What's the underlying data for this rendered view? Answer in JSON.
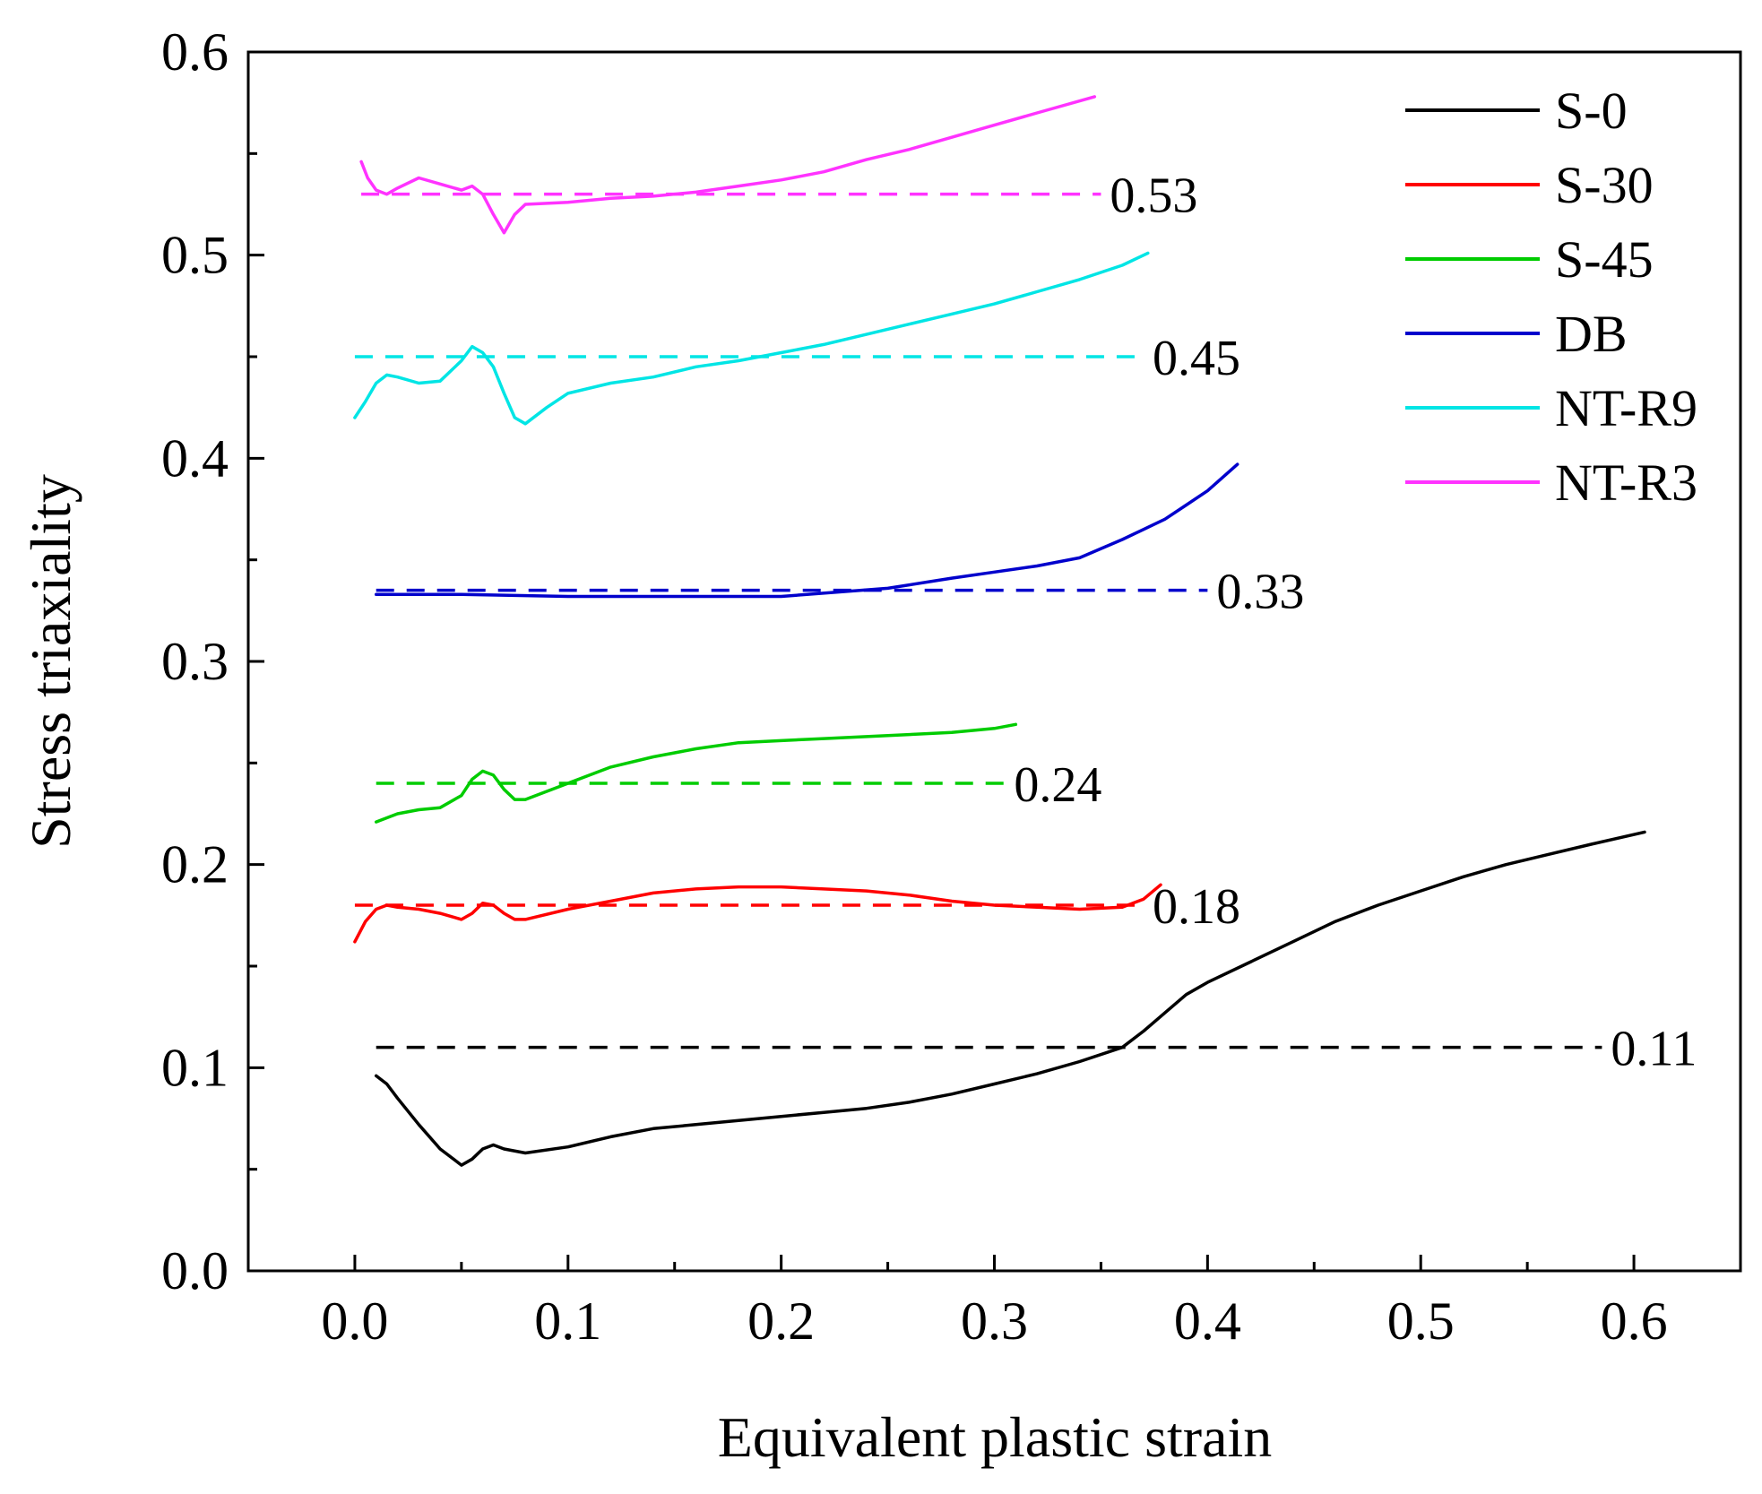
{
  "chart_data": {
    "type": "line",
    "xlabel": "Equivalent plastic strain",
    "ylabel": "Stress triaxiality",
    "xlim": [
      -0.05,
      0.65
    ],
    "ylim": [
      0.0,
      0.6
    ],
    "x_ticks": [
      0.0,
      0.1,
      0.2,
      0.3,
      0.4,
      0.5,
      0.6
    ],
    "x_tick_labels": [
      "0.0",
      "0.1",
      "0.2",
      "0.3",
      "0.4",
      "0.5",
      "0.6"
    ],
    "y_ticks": [
      0.0,
      0.1,
      0.2,
      0.3,
      0.4,
      0.5,
      0.6
    ],
    "y_tick_labels": [
      "0.0",
      "0.1",
      "0.2",
      "0.3",
      "0.4",
      "0.5",
      "0.6"
    ],
    "legend_position": "top-right",
    "series": [
      {
        "name": "S-0",
        "color": "#000000",
        "points": [
          [
            0.01,
            0.096
          ],
          [
            0.015,
            0.092
          ],
          [
            0.02,
            0.085
          ],
          [
            0.03,
            0.072
          ],
          [
            0.04,
            0.06
          ],
          [
            0.05,
            0.052
          ],
          [
            0.055,
            0.055
          ],
          [
            0.06,
            0.06
          ],
          [
            0.065,
            0.062
          ],
          [
            0.07,
            0.06
          ],
          [
            0.08,
            0.058
          ],
          [
            0.1,
            0.061
          ],
          [
            0.12,
            0.066
          ],
          [
            0.14,
            0.07
          ],
          [
            0.16,
            0.072
          ],
          [
            0.18,
            0.074
          ],
          [
            0.2,
            0.076
          ],
          [
            0.22,
            0.078
          ],
          [
            0.24,
            0.08
          ],
          [
            0.26,
            0.083
          ],
          [
            0.28,
            0.087
          ],
          [
            0.3,
            0.092
          ],
          [
            0.32,
            0.097
          ],
          [
            0.34,
            0.103
          ],
          [
            0.36,
            0.11
          ],
          [
            0.37,
            0.118
          ],
          [
            0.38,
            0.127
          ],
          [
            0.39,
            0.136
          ],
          [
            0.4,
            0.142
          ],
          [
            0.42,
            0.152
          ],
          [
            0.44,
            0.162
          ],
          [
            0.46,
            0.172
          ],
          [
            0.48,
            0.18
          ],
          [
            0.5,
            0.187
          ],
          [
            0.52,
            0.194
          ],
          [
            0.54,
            0.2
          ],
          [
            0.56,
            0.205
          ],
          [
            0.58,
            0.21
          ],
          [
            0.605,
            0.216
          ]
        ]
      },
      {
        "name": "S-30",
        "color": "#ff0000",
        "points": [
          [
            0.0,
            0.162
          ],
          [
            0.005,
            0.172
          ],
          [
            0.01,
            0.178
          ],
          [
            0.015,
            0.18
          ],
          [
            0.02,
            0.179
          ],
          [
            0.03,
            0.178
          ],
          [
            0.04,
            0.176
          ],
          [
            0.05,
            0.173
          ],
          [
            0.055,
            0.176
          ],
          [
            0.06,
            0.181
          ],
          [
            0.065,
            0.18
          ],
          [
            0.07,
            0.176
          ],
          [
            0.075,
            0.173
          ],
          [
            0.08,
            0.173
          ],
          [
            0.1,
            0.178
          ],
          [
            0.12,
            0.182
          ],
          [
            0.14,
            0.186
          ],
          [
            0.16,
            0.188
          ],
          [
            0.18,
            0.189
          ],
          [
            0.2,
            0.189
          ],
          [
            0.22,
            0.188
          ],
          [
            0.24,
            0.187
          ],
          [
            0.26,
            0.185
          ],
          [
            0.28,
            0.182
          ],
          [
            0.3,
            0.18
          ],
          [
            0.32,
            0.179
          ],
          [
            0.34,
            0.178
          ],
          [
            0.36,
            0.179
          ],
          [
            0.37,
            0.183
          ],
          [
            0.378,
            0.19
          ]
        ]
      },
      {
        "name": "S-45",
        "color": "#00cc00",
        "points": [
          [
            0.01,
            0.221
          ],
          [
            0.02,
            0.225
          ],
          [
            0.03,
            0.227
          ],
          [
            0.04,
            0.228
          ],
          [
            0.05,
            0.234
          ],
          [
            0.055,
            0.242
          ],
          [
            0.06,
            0.246
          ],
          [
            0.065,
            0.244
          ],
          [
            0.07,
            0.237
          ],
          [
            0.075,
            0.232
          ],
          [
            0.08,
            0.232
          ],
          [
            0.1,
            0.24
          ],
          [
            0.12,
            0.248
          ],
          [
            0.14,
            0.253
          ],
          [
            0.16,
            0.257
          ],
          [
            0.18,
            0.26
          ],
          [
            0.2,
            0.261
          ],
          [
            0.22,
            0.262
          ],
          [
            0.24,
            0.263
          ],
          [
            0.26,
            0.264
          ],
          [
            0.28,
            0.265
          ],
          [
            0.3,
            0.267
          ],
          [
            0.31,
            0.269
          ]
        ]
      },
      {
        "name": "DB",
        "color": "#0000cc",
        "points": [
          [
            0.01,
            0.333
          ],
          [
            0.05,
            0.333
          ],
          [
            0.1,
            0.332
          ],
          [
            0.15,
            0.332
          ],
          [
            0.2,
            0.332
          ],
          [
            0.25,
            0.336
          ],
          [
            0.28,
            0.341
          ],
          [
            0.3,
            0.344
          ],
          [
            0.32,
            0.347
          ],
          [
            0.34,
            0.351
          ],
          [
            0.36,
            0.36
          ],
          [
            0.38,
            0.37
          ],
          [
            0.39,
            0.377
          ],
          [
            0.4,
            0.384
          ],
          [
            0.414,
            0.397
          ]
        ]
      },
      {
        "name": "NT-R9",
        "color": "#00e5e5",
        "points": [
          [
            0.0,
            0.42
          ],
          [
            0.005,
            0.428
          ],
          [
            0.01,
            0.437
          ],
          [
            0.015,
            0.441
          ],
          [
            0.02,
            0.44
          ],
          [
            0.03,
            0.437
          ],
          [
            0.04,
            0.438
          ],
          [
            0.05,
            0.448
          ],
          [
            0.055,
            0.455
          ],
          [
            0.06,
            0.452
          ],
          [
            0.065,
            0.445
          ],
          [
            0.07,
            0.432
          ],
          [
            0.075,
            0.42
          ],
          [
            0.08,
            0.417
          ],
          [
            0.09,
            0.425
          ],
          [
            0.1,
            0.432
          ],
          [
            0.12,
            0.437
          ],
          [
            0.14,
            0.44
          ],
          [
            0.16,
            0.445
          ],
          [
            0.18,
            0.448
          ],
          [
            0.2,
            0.452
          ],
          [
            0.22,
            0.456
          ],
          [
            0.24,
            0.461
          ],
          [
            0.26,
            0.466
          ],
          [
            0.28,
            0.471
          ],
          [
            0.3,
            0.476
          ],
          [
            0.32,
            0.482
          ],
          [
            0.34,
            0.488
          ],
          [
            0.36,
            0.495
          ],
          [
            0.372,
            0.501
          ]
        ]
      },
      {
        "name": "NT-R3",
        "color": "#ff33ff",
        "points": [
          [
            0.003,
            0.546
          ],
          [
            0.006,
            0.538
          ],
          [
            0.01,
            0.532
          ],
          [
            0.015,
            0.53
          ],
          [
            0.02,
            0.533
          ],
          [
            0.03,
            0.538
          ],
          [
            0.04,
            0.535
          ],
          [
            0.05,
            0.532
          ],
          [
            0.055,
            0.534
          ],
          [
            0.06,
            0.53
          ],
          [
            0.065,
            0.52
          ],
          [
            0.07,
            0.511
          ],
          [
            0.075,
            0.52
          ],
          [
            0.08,
            0.525
          ],
          [
            0.1,
            0.526
          ],
          [
            0.12,
            0.528
          ],
          [
            0.14,
            0.529
          ],
          [
            0.16,
            0.531
          ],
          [
            0.18,
            0.534
          ],
          [
            0.2,
            0.537
          ],
          [
            0.22,
            0.541
          ],
          [
            0.24,
            0.547
          ],
          [
            0.26,
            0.552
          ],
          [
            0.28,
            0.558
          ],
          [
            0.3,
            0.564
          ],
          [
            0.32,
            0.57
          ],
          [
            0.347,
            0.578
          ]
        ]
      }
    ],
    "reference_lines": [
      {
        "series": "S-0",
        "color": "#000000",
        "y": 0.11,
        "x_start": 0.01,
        "x_end": 0.585,
        "label": "0.11"
      },
      {
        "series": "S-30",
        "color": "#ff0000",
        "y": 0.18,
        "x_start": 0.0,
        "x_end": 0.37,
        "label": "0.18"
      },
      {
        "series": "S-45",
        "color": "#00cc00",
        "y": 0.24,
        "x_start": 0.01,
        "x_end": 0.305,
        "label": "0.24"
      },
      {
        "series": "DB",
        "color": "#0000cc",
        "y": 0.335,
        "x_start": 0.01,
        "x_end": 0.4,
        "label": "0.33"
      },
      {
        "series": "NT-R9",
        "color": "#00e5e5",
        "y": 0.45,
        "x_start": 0.0,
        "x_end": 0.37,
        "label": "0.45"
      },
      {
        "series": "NT-R3",
        "color": "#ff33ff",
        "y": 0.53,
        "x_start": 0.003,
        "x_end": 0.35,
        "label": "0.53"
      }
    ]
  }
}
